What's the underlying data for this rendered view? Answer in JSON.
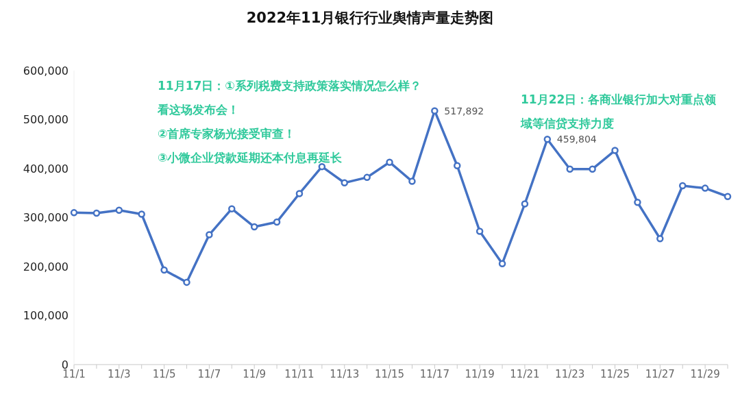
{
  "chart_data": {
    "type": "line",
    "title": "2022年11月银行行业舆情声量走势图",
    "categories": [
      "11/1",
      null,
      "11/3",
      null,
      "11/5",
      null,
      "11/7",
      null,
      "11/9",
      null,
      "11/11",
      null,
      "11/13",
      null,
      "11/15",
      null,
      "11/17",
      null,
      "11/19",
      null,
      "11/21",
      null,
      "11/23",
      null,
      "11/25",
      null,
      "11/27",
      null,
      "11/29",
      null
    ],
    "series": [
      {
        "color": "#4472c4",
        "values": [
          310000,
          309000,
          315000,
          307000,
          193000,
          168000,
          265000,
          318000,
          281000,
          291000,
          349000,
          404000,
          371000,
          382000,
          413000,
          374000,
          517892,
          406000,
          272000,
          206000,
          328000,
          459804,
          399000,
          399000,
          437000,
          331000,
          257000,
          365000,
          360000,
          343000
        ],
        "value_labels": [
          null,
          null,
          null,
          null,
          null,
          null,
          null,
          null,
          null,
          null,
          null,
          null,
          null,
          null,
          null,
          null,
          "517,892",
          null,
          null,
          null,
          null,
          "459,804",
          null,
          null,
          null,
          null,
          null,
          null,
          null,
          null
        ]
      }
    ],
    "ylim": [
      0,
      600000
    ],
    "yticks": [
      0,
      {
        "value": 100000,
        "label": "100,000"
      },
      {
        "value": 200000,
        "label": "200,000"
      },
      {
        "value": 300000,
        "label": "300,000"
      },
      {
        "value": 400000,
        "label": "400,000"
      },
      {
        "value": 500000,
        "label": "500,000"
      },
      {
        "value": 600000,
        "label": "600,000"
      }
    ],
    "annotations": [
      "11月17日：①系列税费支持政策落实情况怎么样？看这场发布会！\n②首席专家杨光接受审查！\n③小微企业贷款延期还本付息再延长",
      "11月22日：各商业银行加大对重点领域等信贷支持力度"
    ],
    "grid": false,
    "legend": false,
    "marker": "circle",
    "line_style": "solid"
  }
}
